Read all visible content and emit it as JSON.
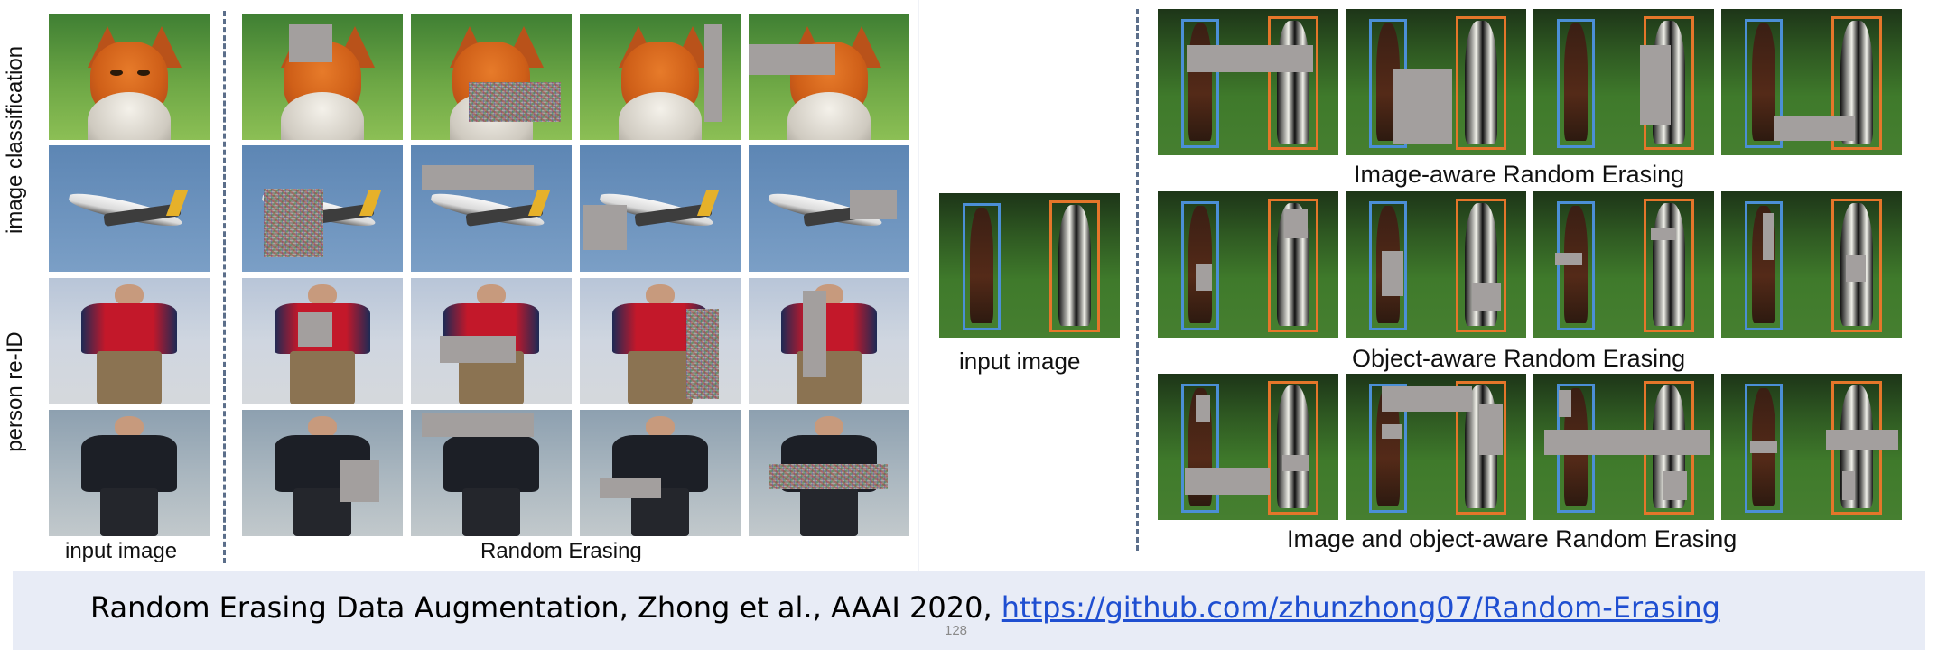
{
  "left_figure": {
    "row_label_top": "image classification",
    "row_label_bottom": "person re-ID",
    "bottom_label_input": "input image",
    "bottom_label_method": "Random Erasing"
  },
  "right_figure": {
    "input_label": "input image",
    "row1_caption": "Image-aware Random Erasing",
    "row2_caption": "Object-aware Random Erasing",
    "row3_caption": "Image and object-aware Random Erasing"
  },
  "footer": {
    "citation_text": "Random Erasing Data Augmentation, Zhong et al., AAAI 2020, ",
    "link_text": "https://github.com/zhunzhong07/Random-Erasing",
    "page_number": "128"
  },
  "colors": {
    "erase_gray": "#a39f9e",
    "bbox_blue": "#4b8fd6",
    "bbox_orange": "#e5762a",
    "link_blue": "#1f4fd1",
    "footer_bg": "#e8ecf6"
  }
}
